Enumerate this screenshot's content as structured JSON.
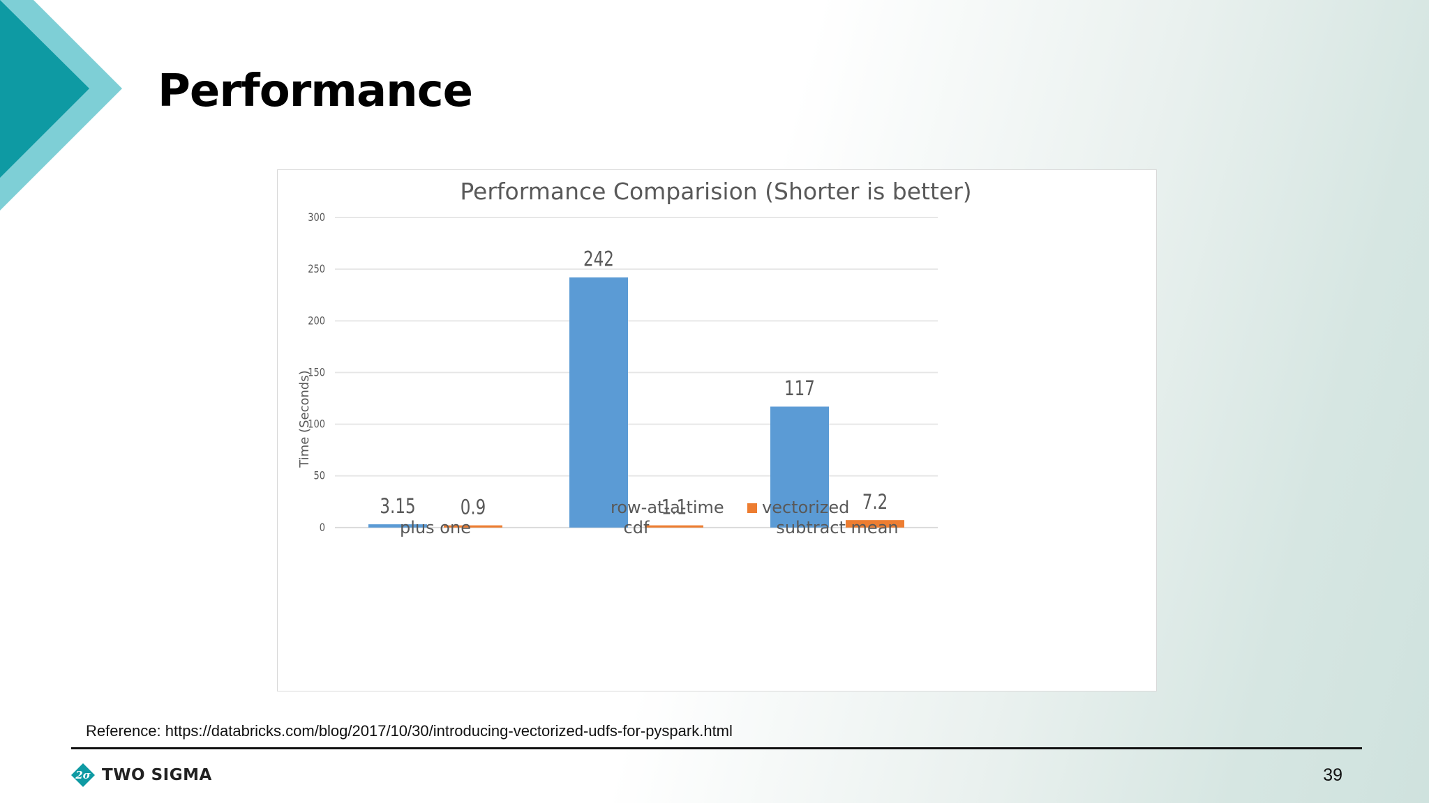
{
  "slide": {
    "title": "Performance",
    "reference": "Reference:  https://databricks.com/blog/2017/10/30/introducing-vectorized-udfs-for-pyspark.html",
    "brand_name": "TWO SIGMA",
    "page_number": "39"
  },
  "colors": {
    "accent_dark": "#0e9aa3",
    "accent_light": "#7ecfd6",
    "series_row": "#5b9bd5",
    "series_vec": "#ed7d31"
  },
  "chart_data": {
    "type": "bar",
    "title": "Performance  Comparision (Shorter is better)",
    "xlabel": "",
    "ylabel": "Time (Seconds)",
    "ylim": [
      0,
      300
    ],
    "yticks": [
      0,
      50,
      100,
      150,
      200,
      250,
      300
    ],
    "categories": [
      "plus one",
      "cdf",
      "subtract mean"
    ],
    "series": [
      {
        "name": "row-at-a-time",
        "values": [
          3.15,
          242,
          117
        ],
        "labels": [
          "3.15",
          "242",
          "117"
        ],
        "color": "#5b9bd5"
      },
      {
        "name": "vectorized",
        "values": [
          0.9,
          1.1,
          7.2
        ],
        "labels": [
          "0.9",
          "1.1",
          "7.2"
        ],
        "color": "#ed7d31"
      }
    ],
    "grid": true,
    "legend": "bottom"
  }
}
